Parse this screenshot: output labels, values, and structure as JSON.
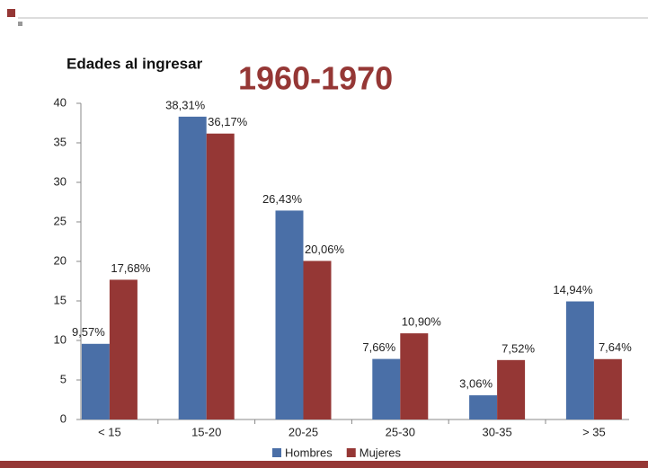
{
  "chart_data": {
    "type": "bar",
    "title": "Edades al ingresar",
    "subtitle": "1960-1970",
    "categories": [
      "< 15",
      "15-20",
      "20-25",
      "25-30",
      "30-35",
      "> 35"
    ],
    "series": [
      {
        "name": "Hombres",
        "color": "#4a6fa7",
        "values": [
          9.57,
          38.31,
          26.43,
          7.66,
          3.06,
          14.94
        ],
        "value_labels": [
          "9,57%",
          "38,31%",
          "26,43%",
          "7,66%",
          "3,06%",
          "14,94%"
        ]
      },
      {
        "name": "Mujeres",
        "color": "#953735",
        "values": [
          17.68,
          36.17,
          20.06,
          10.9,
          7.52,
          7.64
        ],
        "value_labels": [
          "17,68%",
          "36,17%",
          "20,06%",
          "10,90%",
          "7,52%",
          "7,64%"
        ]
      }
    ],
    "ylim": [
      0,
      40
    ],
    "yticks": [
      0,
      5,
      10,
      15,
      20,
      25,
      30,
      35,
      40
    ],
    "legend": "bottom"
  }
}
